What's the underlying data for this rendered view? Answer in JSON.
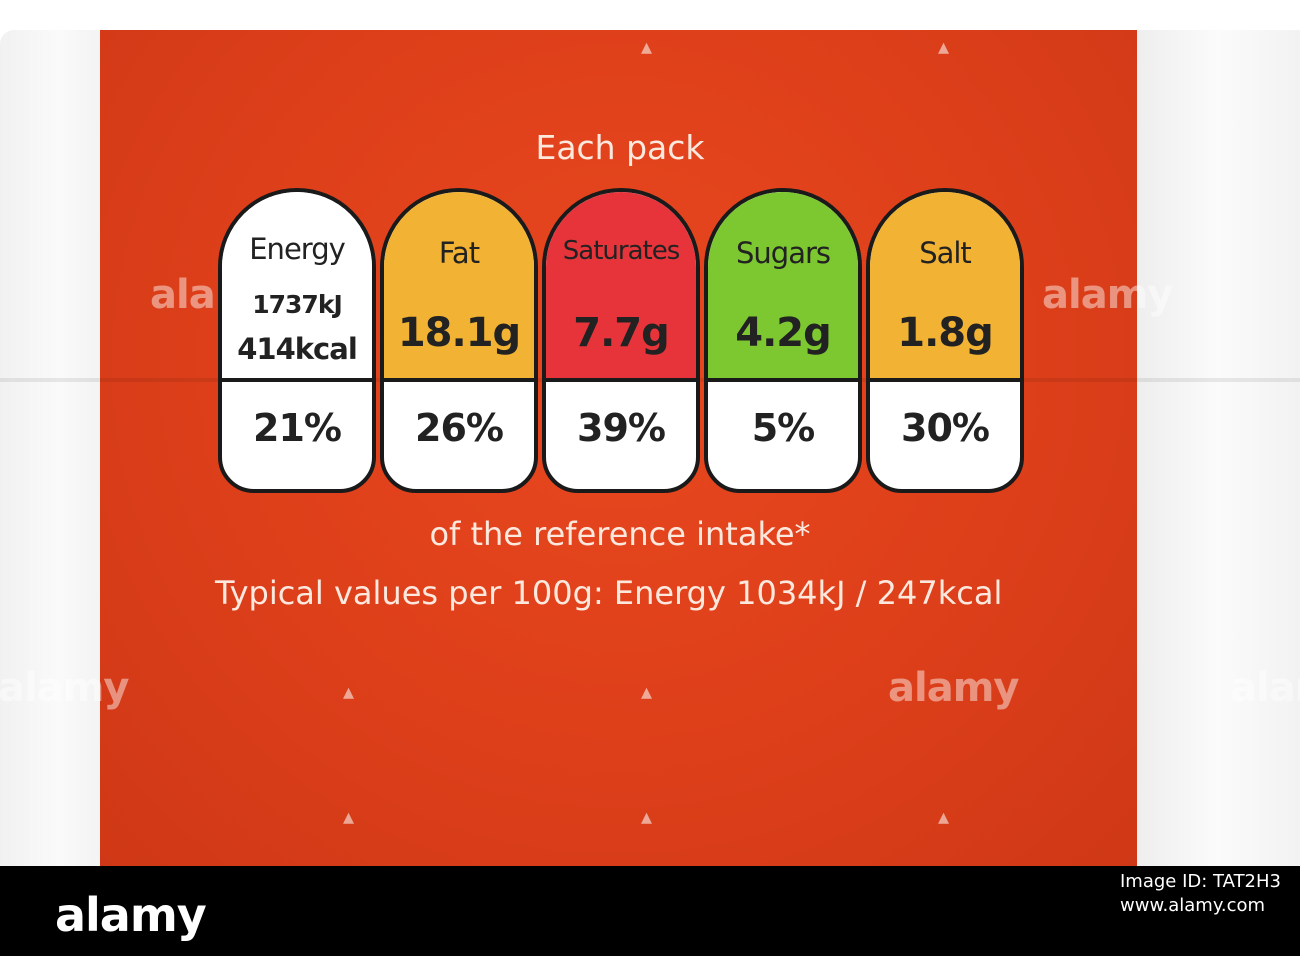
{
  "label": {
    "heading": "Each pack",
    "nutrients": [
      {
        "name": "Energy",
        "kj": "1737kJ",
        "kcal": "414kcal",
        "percent": "21%",
        "color": "#ffffff"
      },
      {
        "name": "Fat",
        "amount": "18.1g",
        "percent": "26%",
        "color": "#f2b233"
      },
      {
        "name": "Saturates",
        "amount": "7.7g",
        "percent": "39%",
        "color": "#e6343a"
      },
      {
        "name": "Sugars",
        "amount": "4.2g",
        "percent": "5%",
        "color": "#7dc830"
      },
      {
        "name": "Salt",
        "amount": "1.8g",
        "percent": "30%",
        "color": "#f2b233"
      }
    ],
    "reference_note": "of the reference intake*",
    "typical_values": "Typical values per 100g: Energy 1034kJ / 247kcal",
    "panel_color": "#dd4019"
  },
  "stock": {
    "name": "alamy",
    "watermark": "alamy",
    "image_id": "Image ID: TAT2H3",
    "site": "www.alamy.com"
  }
}
